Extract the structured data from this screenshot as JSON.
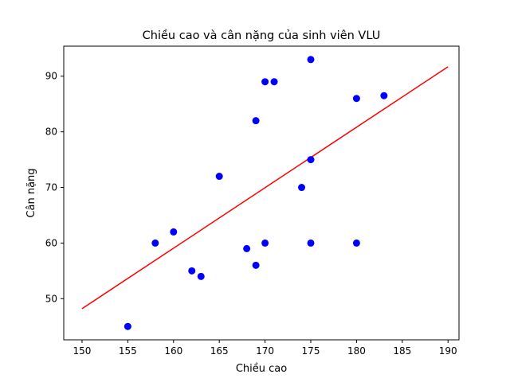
{
  "chart_data": {
    "type": "scatter",
    "title": "Chiều cao và cân nặng của sinh viên VLU",
    "xlabel": "Chiều cao",
    "ylabel": "Cân nặng",
    "xlim": [
      148.0,
      191.2
    ],
    "ylim": [
      42.6,
      95.4
    ],
    "xticks": [
      150,
      155,
      160,
      165,
      170,
      175,
      180,
      185,
      190
    ],
    "yticks": [
      50,
      60,
      70,
      80,
      90
    ],
    "grid": false,
    "series": [
      {
        "kind": "points",
        "color": "#0000ff",
        "x": [
          155,
          158,
          160,
          162,
          163,
          165,
          168,
          169,
          169,
          170,
          170,
          171,
          174,
          175,
          175,
          175,
          180,
          180,
          183
        ],
        "y": [
          45,
          60,
          62,
          55,
          54,
          72,
          59,
          56,
          82,
          60,
          89,
          89,
          70,
          93,
          75,
          60,
          60,
          86,
          86.5
        ]
      },
      {
        "kind": "line",
        "color": "#ff0000",
        "x": [
          150,
          190
        ],
        "y": [
          48.2,
          91.7
        ]
      }
    ]
  }
}
